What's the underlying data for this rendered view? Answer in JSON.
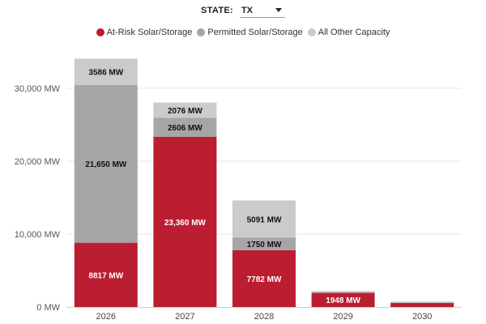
{
  "controls": {
    "state_label": "STATE:",
    "state_value": "TX",
    "state_icon": "chevron-down-icon"
  },
  "colors": {
    "at_risk": "#bb1e31",
    "permitted": "#a6a6a6",
    "other": "#cbcbcb",
    "grid": "#e6e6e6"
  },
  "chart_data": {
    "type": "bar",
    "stacked": true,
    "categories": [
      "2026",
      "2027",
      "2028",
      "2029",
      "2030"
    ],
    "series": [
      {
        "name": "At-Risk Solar/Storage",
        "color_key": "at_risk",
        "values": [
          8817,
          23360,
          7782,
          1948,
          550
        ],
        "labels": [
          "8817 MW",
          "23,360 MW",
          "7782 MW",
          "1948 MW",
          ""
        ],
        "label_color": "#ffffff"
      },
      {
        "name": "Permitted Solar/Storage",
        "color_key": "permitted",
        "values": [
          21650,
          2606,
          1750,
          0,
          0
        ],
        "labels": [
          "21,650 MW",
          "2606 MW",
          "1750 MW",
          "",
          ""
        ],
        "label_color": "#111111"
      },
      {
        "name": "All Other Capacity",
        "color_key": "other",
        "values": [
          3586,
          2076,
          5091,
          250,
          200
        ],
        "labels": [
          "3586 MW",
          "2076 MW",
          "5091 MW",
          "",
          ""
        ],
        "label_color": "#111111"
      }
    ],
    "ylim": [
      0,
      35000
    ],
    "yticks": [
      0,
      10000,
      20000,
      30000
    ],
    "ytick_labels": [
      "0 MW",
      "10,000 MW",
      "20,000 MW",
      "30,000 MW"
    ],
    "grid": true,
    "legend_position": "top-center"
  }
}
